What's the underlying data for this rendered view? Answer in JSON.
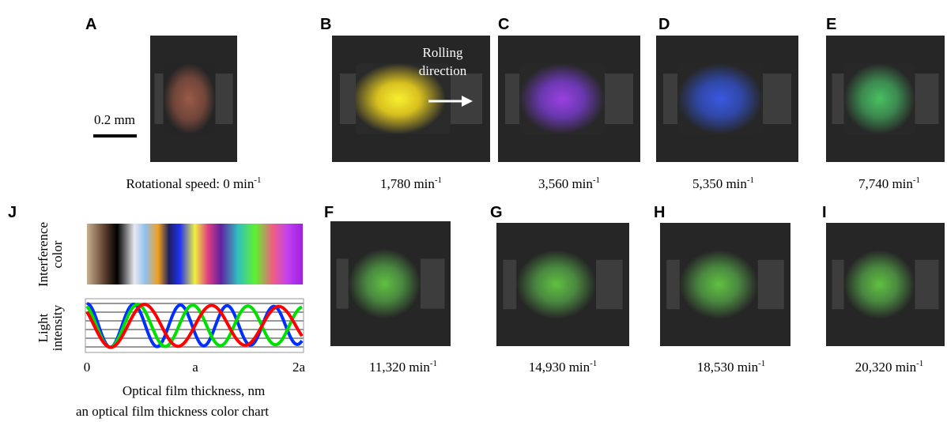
{
  "panels": [
    {
      "label": "A",
      "caption": "Rotational speed: 0 min",
      "exponent": "-1"
    },
    {
      "label": "B",
      "caption": "1,780 min",
      "exponent": "-1"
    },
    {
      "label": "C",
      "caption": "3,560 min",
      "exponent": "-1"
    },
    {
      "label": "D",
      "caption": "5,350 min",
      "exponent": "-1"
    },
    {
      "label": "E",
      "caption": "7,740 min",
      "exponent": "-1"
    },
    {
      "label": "F",
      "caption": "11,320 min",
      "exponent": "-1"
    },
    {
      "label": "G",
      "caption": "14,930 min",
      "exponent": "-1"
    },
    {
      "label": "H",
      "caption": "18,530 min",
      "exponent": "-1"
    },
    {
      "label": "I",
      "caption": "20,320 min",
      "exponent": "-1"
    }
  ],
  "scale_bar": "0.2 mm",
  "rolling": [
    "Rolling",
    "direction"
  ],
  "chart": {
    "label": "J",
    "color_label": [
      "Interference",
      "color"
    ],
    "intensity_label": [
      "Light",
      "intensity"
    ],
    "ticks": [
      "0",
      "a",
      "2a"
    ],
    "x_label": "Optical film thickness, nm",
    "caption": "an optical film thickness color chart"
  }
}
